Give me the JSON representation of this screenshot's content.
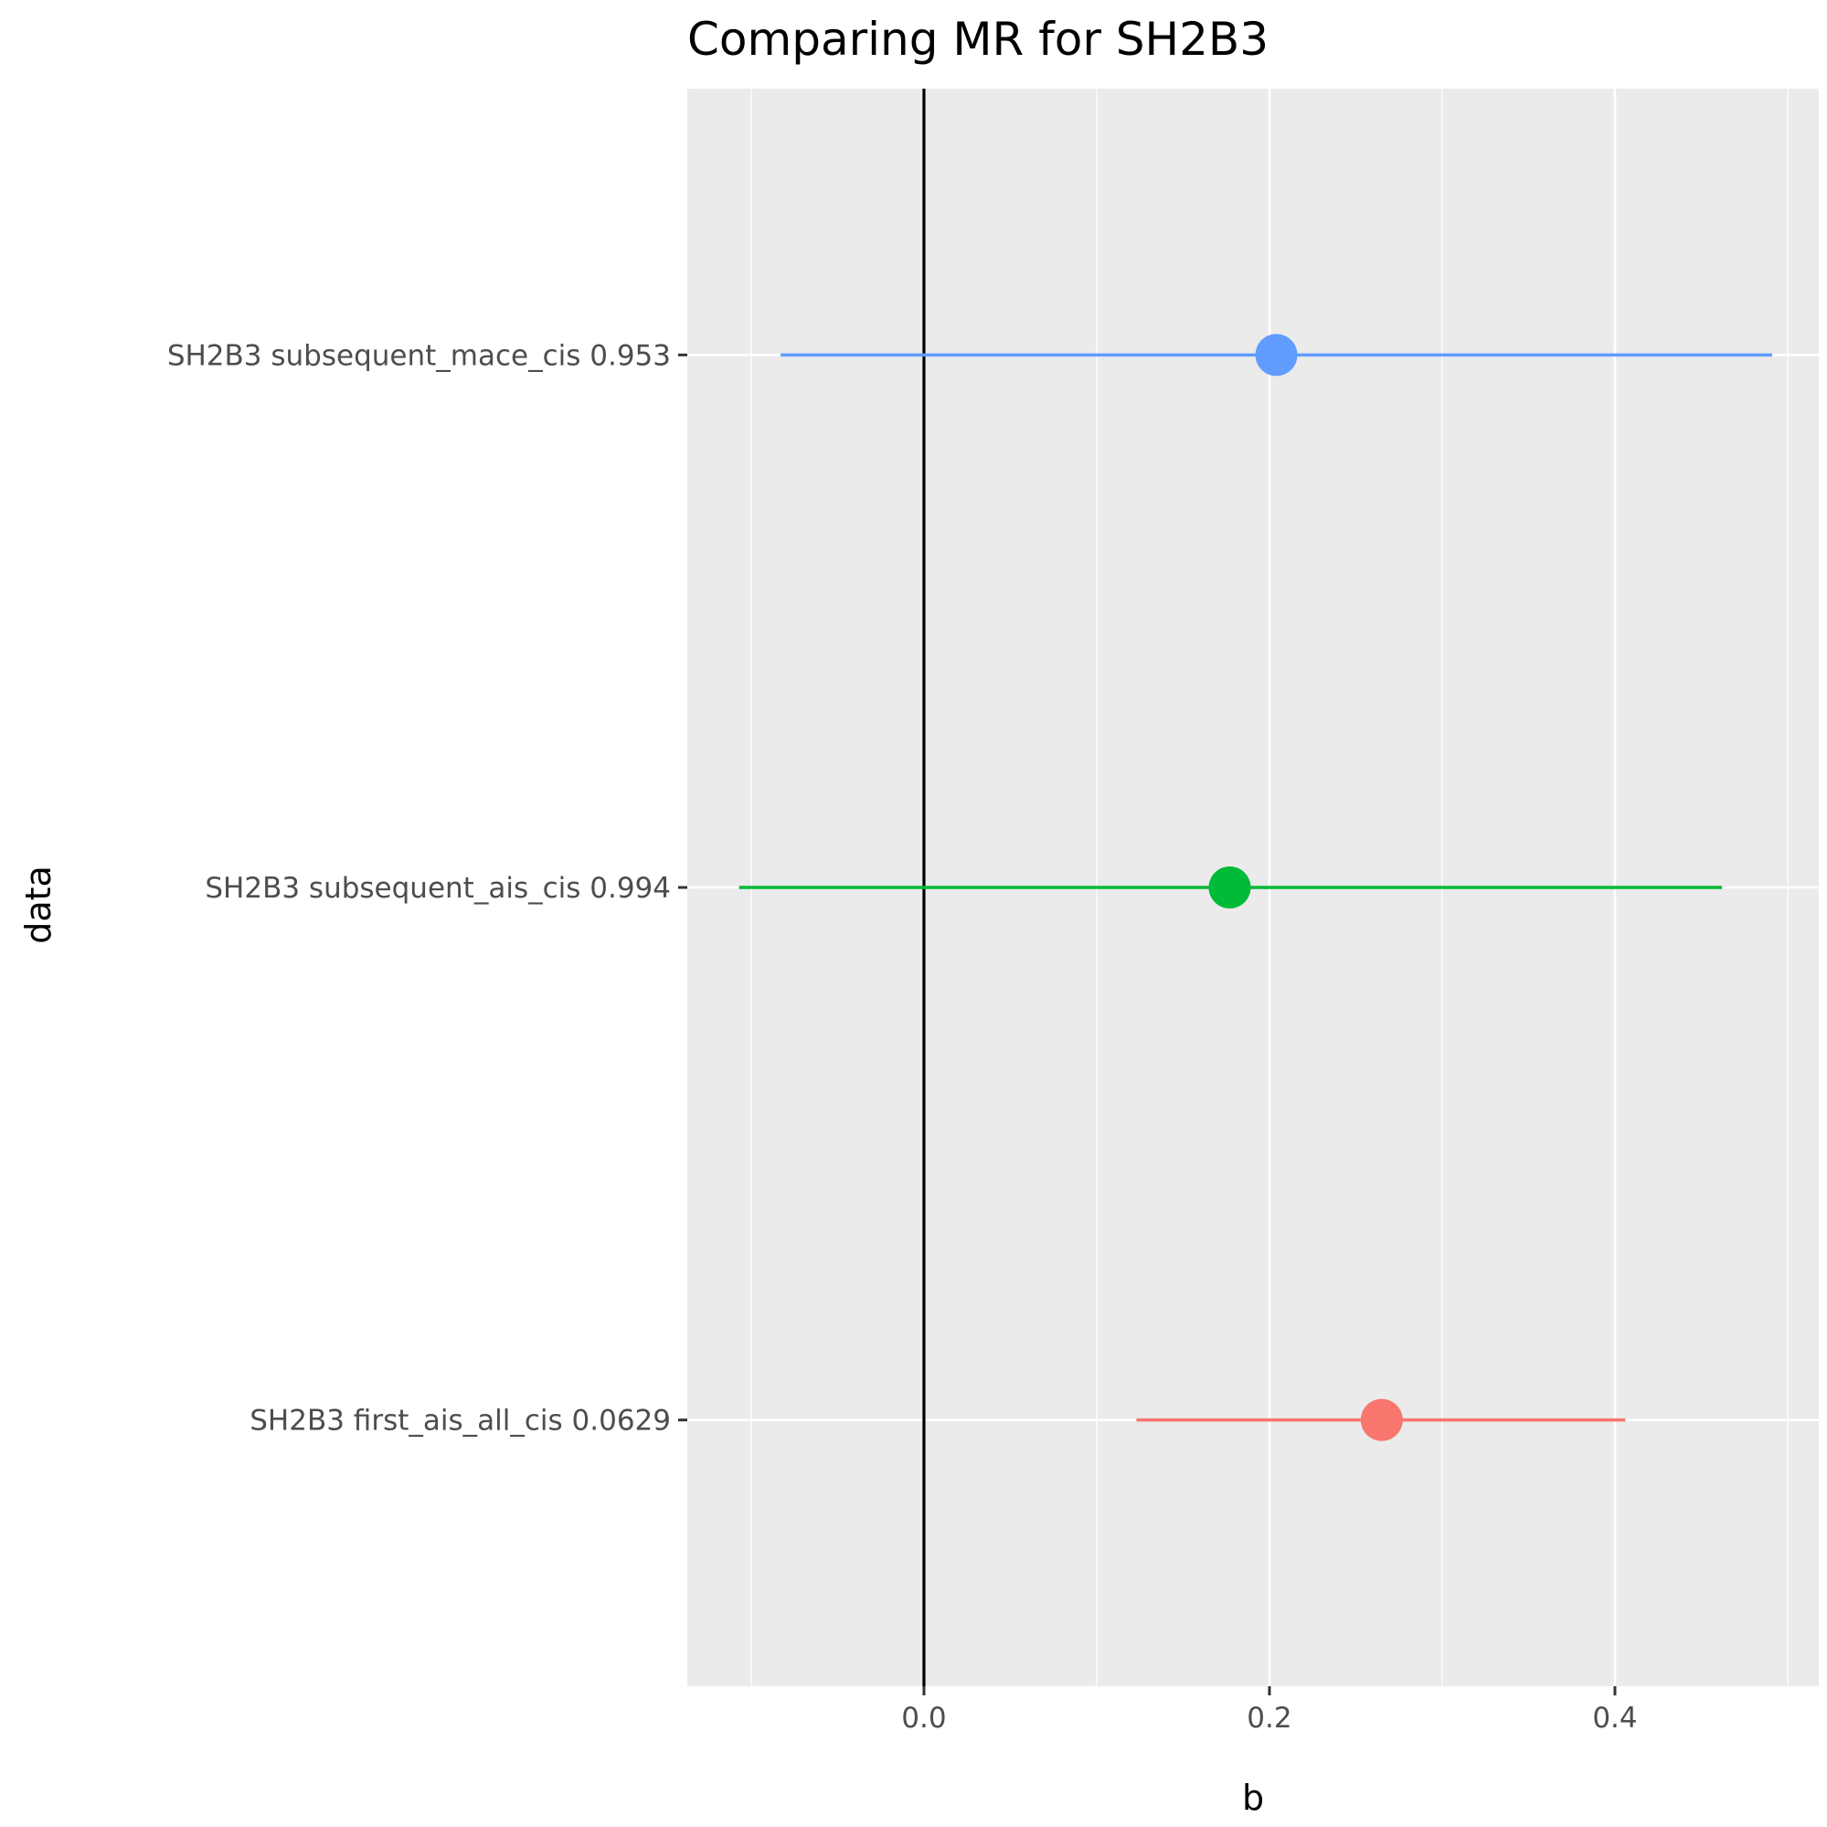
{
  "chart_data": {
    "type": "forest",
    "title": "Comparing MR for SH2B3",
    "xlabel": "b",
    "ylabel": "data",
    "xlim": [
      -0.137,
      0.518
    ],
    "x_ticks": [
      0.0,
      0.2,
      0.4
    ],
    "x_tick_labels": [
      "0.0",
      "0.2",
      "0.4"
    ],
    "reference_line_x": 0,
    "grid": true,
    "legend": "none",
    "categories": [
      "SH2B3 first_ais_all_cis 0.0629",
      "SH2B3 subsequent_ais_cis 0.994",
      "SH2B3 subsequent_mace_cis 0.953"
    ],
    "points": [
      {
        "label": "SH2B3 first_ais_all_cis 0.0629",
        "b": 0.265,
        "lower": 0.123,
        "upper": 0.406,
        "color": "#F8766D"
      },
      {
        "label": "SH2B3 subsequent_ais_cis 0.994",
        "b": 0.177,
        "lower": -0.107,
        "upper": 0.462,
        "color": "#00BA38"
      },
      {
        "label": "SH2B3 subsequent_mace_cis 0.953",
        "b": 0.204,
        "lower": -0.083,
        "upper": 0.491,
        "color": "#619CFF"
      }
    ],
    "panel_color": "#EBEBEB",
    "gridline_color": "#FFFFFF"
  }
}
